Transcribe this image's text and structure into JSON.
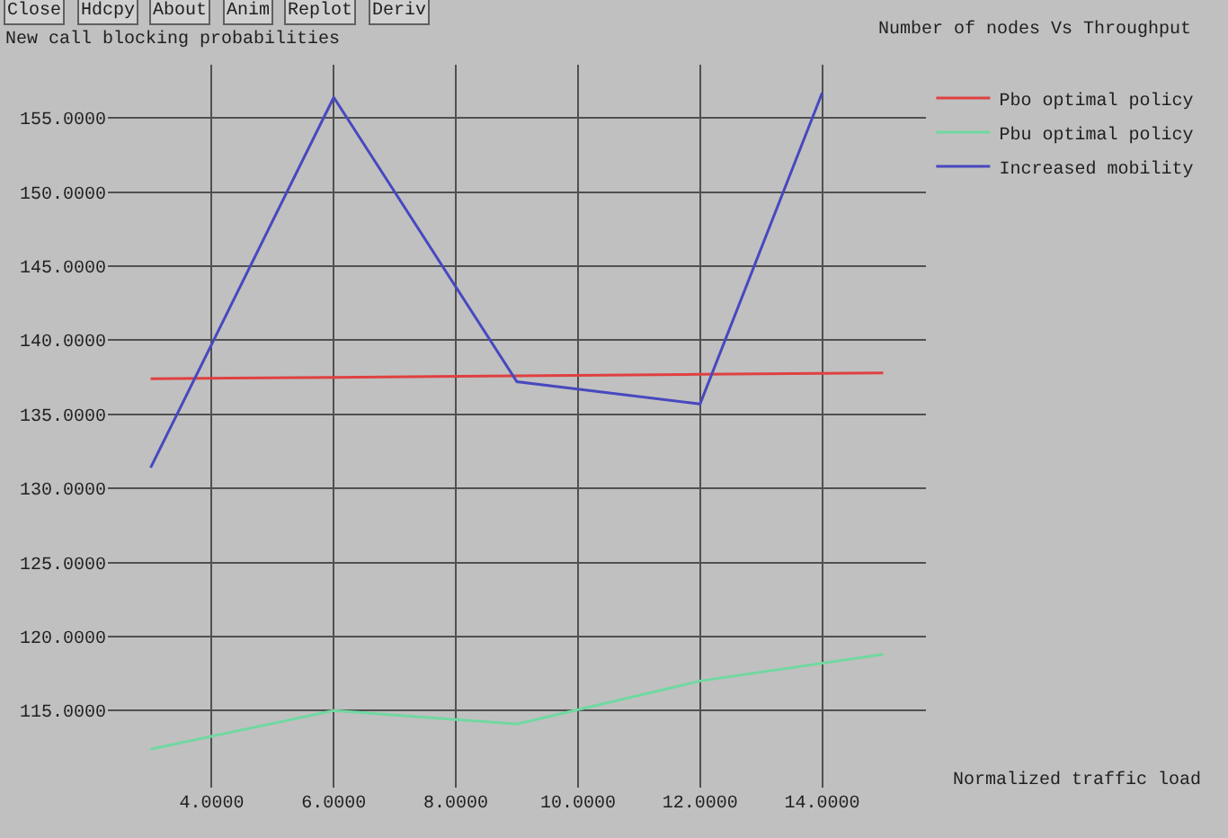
{
  "chart_data": {
    "type": "line",
    "title": "Number of nodes Vs Throughput",
    "ylabel": "New call blocking probabilities",
    "xlabel": "Normalized traffic load",
    "annotations": [
      "Close",
      "Hdcpy",
      "About",
      "Anim",
      "Replot",
      "Deriv"
    ],
    "series": [
      {
        "name": "Pbo optimal policy",
        "color": "#e04040",
        "x": [
          3,
          6,
          9,
          12,
          15
        ],
        "values": [
          137.4,
          137.5,
          137.6,
          137.7,
          137.8
        ]
      },
      {
        "name": "Pbu optimal policy",
        "color": "#70d8a0",
        "x": [
          3,
          6,
          9,
          12,
          15
        ],
        "values": [
          112.4,
          115,
          114.1,
          117,
          118.8
        ]
      },
      {
        "name": "Increased mobility",
        "color": "#4848c0",
        "x": [
          3,
          6,
          9,
          12,
          14
        ],
        "values": [
          131.4,
          156.4,
          137.2,
          135.7,
          156.7
        ]
      }
    ],
    "xlim": [
      2.3,
      15.7
    ],
    "ylim": [
      109.8,
      158.6
    ],
    "xticks": [
      {
        "value": 4,
        "label": "4.0000"
      },
      {
        "value": 6,
        "label": "6.0000"
      },
      {
        "value": 8,
        "label": "8.0000"
      },
      {
        "value": 10,
        "label": "10.0000"
      },
      {
        "value": 12,
        "label": "12.0000"
      },
      {
        "value": 14,
        "label": "14.0000"
      }
    ],
    "yticks": [
      {
        "value": 115,
        "label": "115.0000"
      },
      {
        "value": 120,
        "label": "120.0000"
      },
      {
        "value": 125,
        "label": "125.0000"
      },
      {
        "value": 130,
        "label": "130.0000"
      },
      {
        "value": 135,
        "label": "135.0000"
      },
      {
        "value": 140,
        "label": "140.0000"
      },
      {
        "value": 145,
        "label": "145.0000"
      },
      {
        "value": 150,
        "label": "150.0000"
      },
      {
        "value": 155,
        "label": "155.0000"
      }
    ],
    "grid": true,
    "legend": "top right",
    "marker": "none",
    "line_style": "solid"
  }
}
